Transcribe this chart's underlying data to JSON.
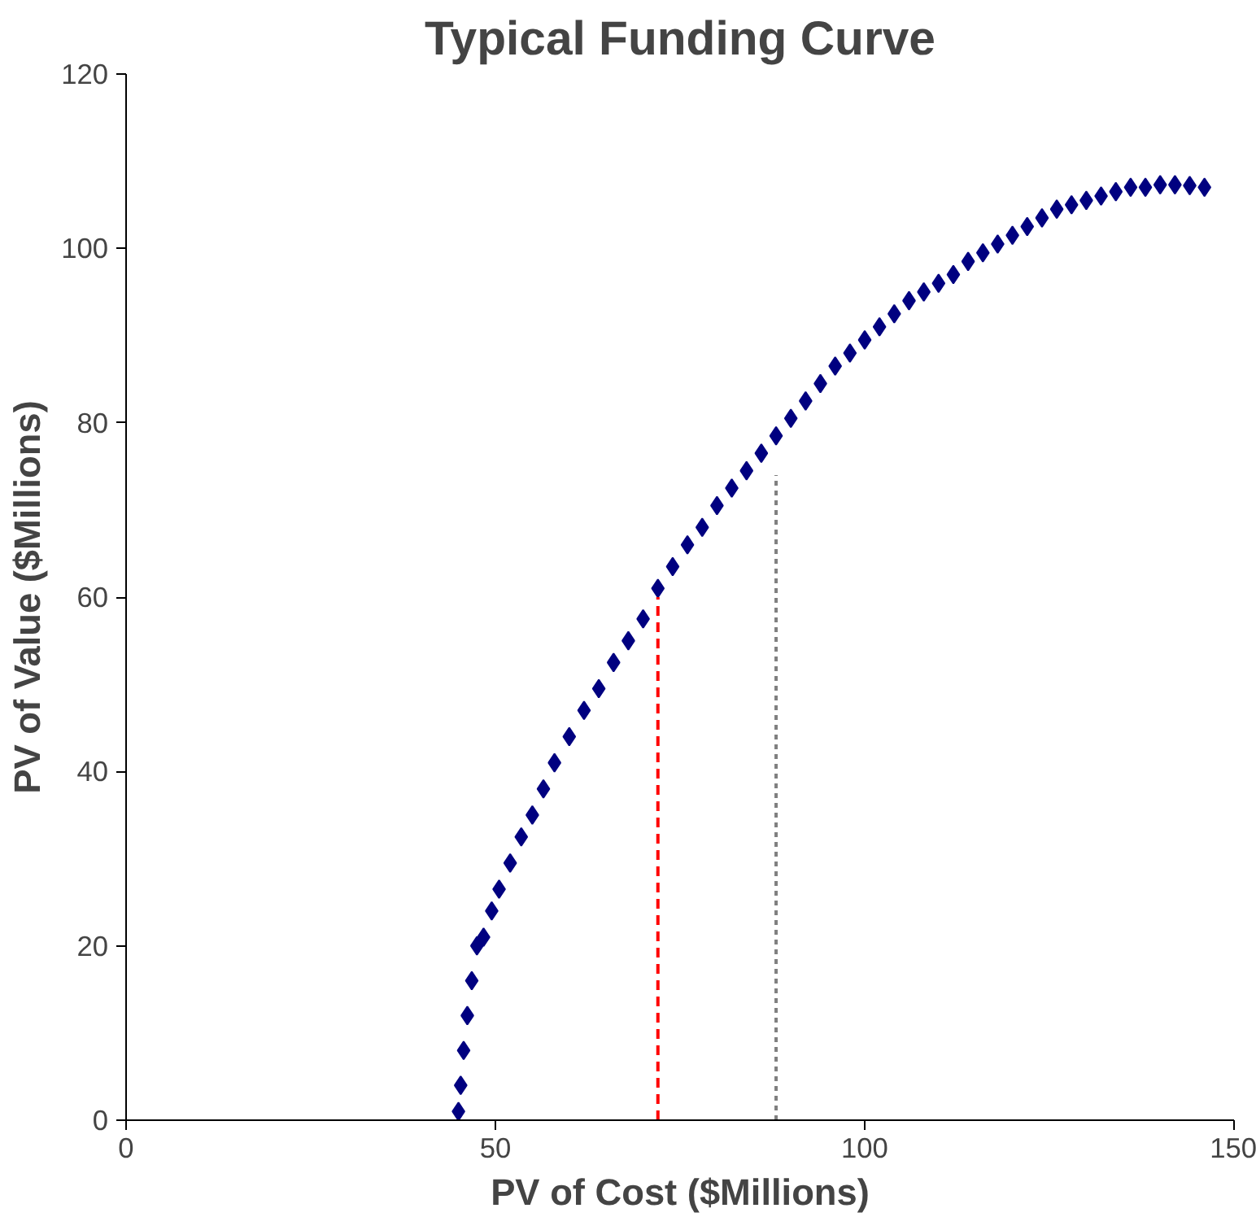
{
  "chart_data": {
    "type": "scatter",
    "title": "Typical Funding Curve",
    "xlabel": "PV of Cost ($Millions)",
    "ylabel": "PV of Value ($Millions)",
    "xlim": [
      0,
      150
    ],
    "xticks": [
      0,
      50,
      100,
      150
    ],
    "ylim": [
      0,
      120
    ],
    "yticks": [
      0,
      20,
      40,
      60,
      80,
      100,
      120
    ],
    "grid": false,
    "marker": "diamond",
    "series": [
      {
        "color": "#000080",
        "x": [
          45.0,
          45.3,
          45.7,
          46.2,
          46.8,
          47.5,
          48.4,
          49.5,
          50.5,
          52,
          53.5,
          55,
          56.5,
          58,
          60,
          62,
          64,
          66,
          68,
          70,
          72,
          74,
          76,
          78,
          80,
          82,
          84,
          86,
          88,
          90,
          92,
          94,
          96,
          98,
          100,
          102,
          104,
          106,
          108,
          110,
          112,
          114,
          116,
          118,
          120,
          122,
          124,
          126,
          128,
          130,
          132,
          134,
          136,
          138,
          140,
          142,
          144,
          146
        ],
        "values": [
          1,
          4,
          8,
          12,
          16,
          20,
          21,
          24,
          26.5,
          29.5,
          32.5,
          35,
          38,
          41,
          44,
          47,
          49.5,
          52.5,
          55,
          57.5,
          61,
          63.5,
          66,
          68,
          70.5,
          72.5,
          74.5,
          76.5,
          78.5,
          80.5,
          82.5,
          84.5,
          86.5,
          88,
          89.5,
          91,
          92.5,
          94,
          95,
          96,
          97,
          98.5,
          99.5,
          100.5,
          101.5,
          102.5,
          103.5,
          104.5,
          105,
          105.5,
          106,
          106.5,
          107,
          107,
          107.3,
          107.3,
          107.2,
          107
        ]
      },
      {
        "type": "line",
        "marker": "none",
        "color": "#ff0000",
        "line_style": "dashed",
        "x": [
          72,
          72
        ],
        "values": [
          0,
          60
        ]
      },
      {
        "type": "line",
        "marker": "none",
        "color": "#808080",
        "line_style": "dotted",
        "x": [
          88,
          88
        ],
        "values": [
          0,
          74
        ]
      }
    ]
  }
}
